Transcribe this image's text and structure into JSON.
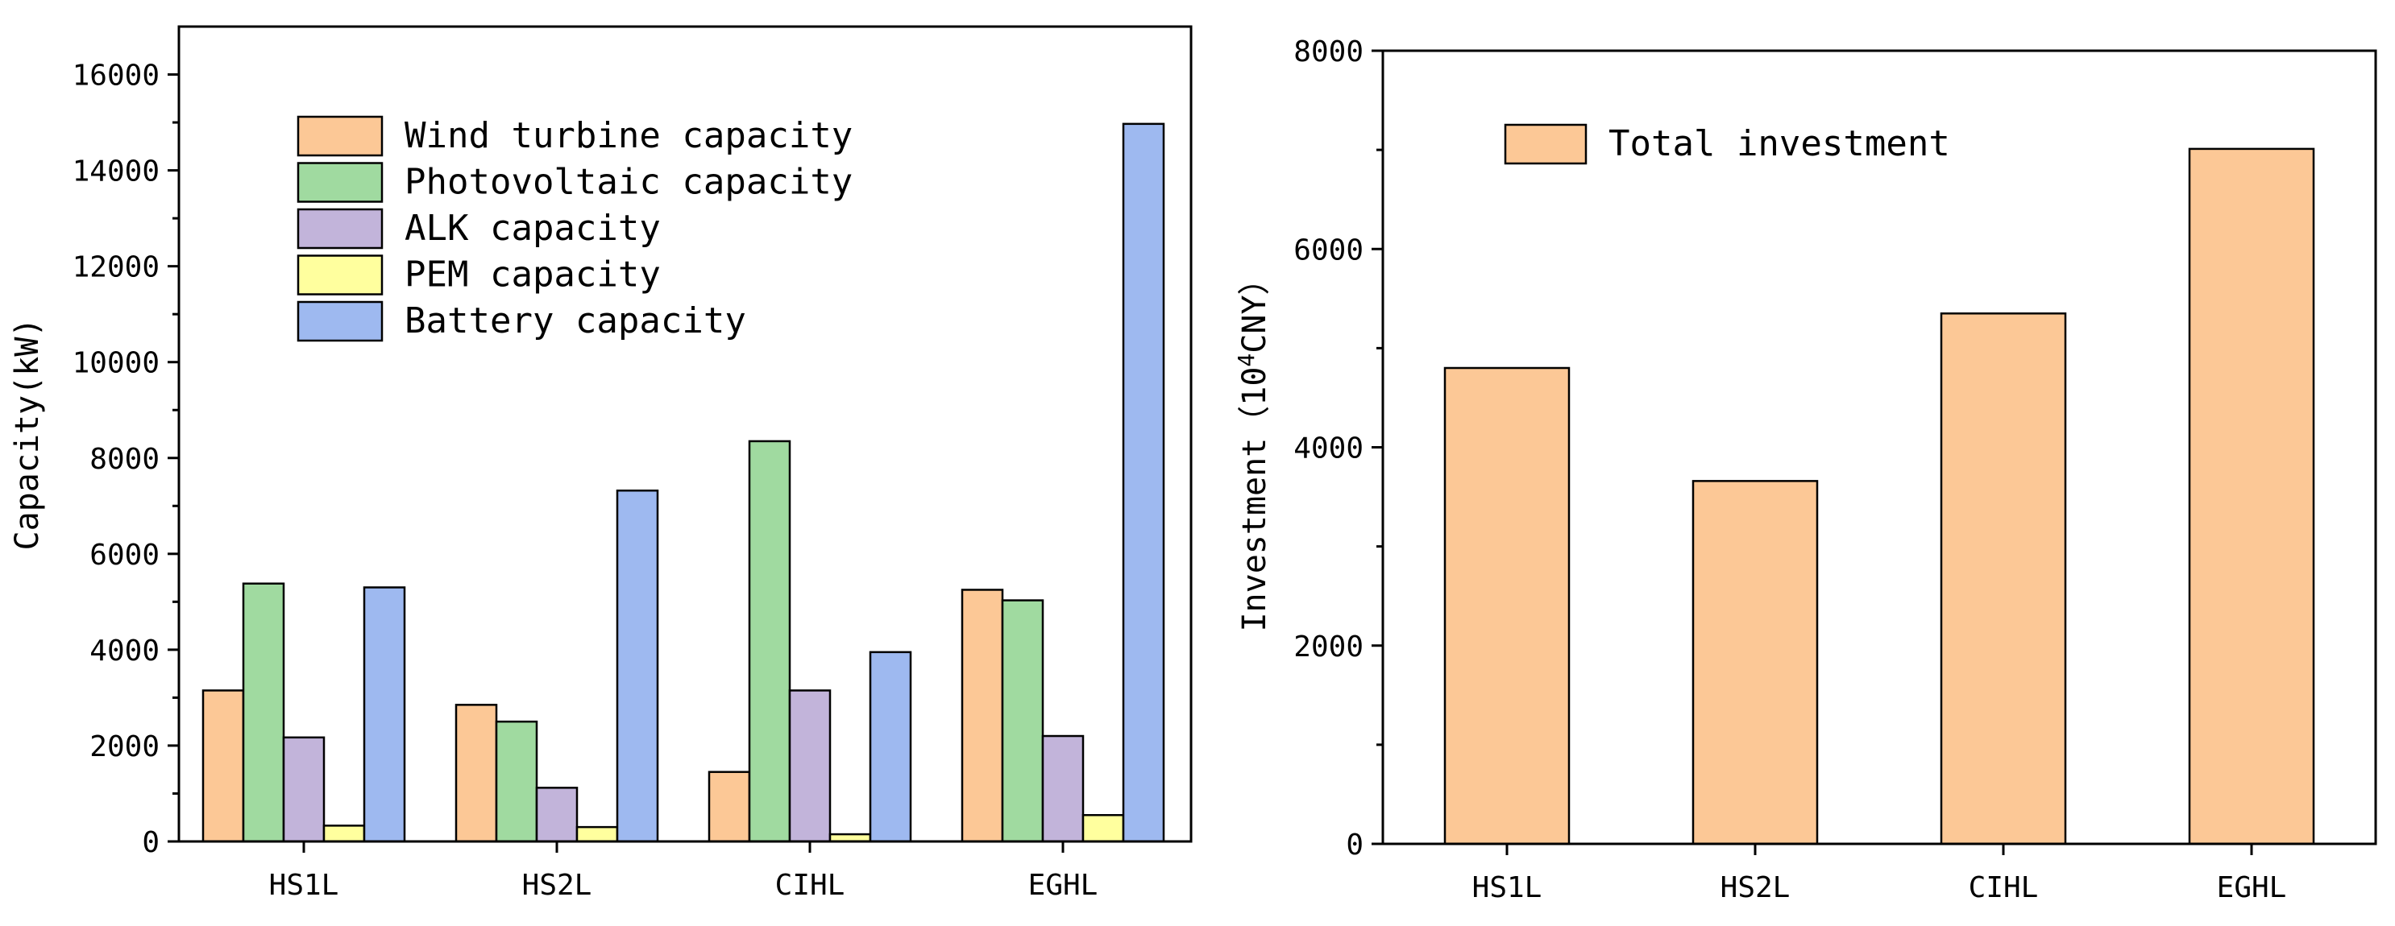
{
  "chart_data": [
    {
      "type": "bar",
      "categories": [
        "HS1L",
        "HS2L",
        "CIHL",
        "EGHL"
      ],
      "series": [
        {
          "name": "Wind turbine capacity",
          "color": "#FCC896",
          "values": [
            3150,
            2850,
            1450,
            5250
          ]
        },
        {
          "name": "Photovoltaic capacity",
          "color": "#A0DAA0",
          "values": [
            5380,
            2500,
            8350,
            5030
          ]
        },
        {
          "name": "ALK capacity",
          "color": "#C2B4DA",
          "values": [
            2170,
            1120,
            3150,
            2200
          ]
        },
        {
          "name": "PEM capacity",
          "color": "#FFFF9E",
          "values": [
            330,
            300,
            150,
            550
          ]
        },
        {
          "name": "Battery capacity",
          "color": "#9EB9F0",
          "values": [
            5300,
            7320,
            3950,
            14970
          ]
        }
      ],
      "yticks": [
        "0",
        "2000",
        "4000",
        "6000",
        "8000",
        "10000",
        "12000",
        "14000",
        "16000"
      ],
      "ylabel": "Capacity(kW)",
      "xlabel": "",
      "ylim": [
        0,
        17000
      ],
      "legend_position": "top-left"
    },
    {
      "type": "bar",
      "categories": [
        "HS1L",
        "HS2L",
        "CIHL",
        "EGHL"
      ],
      "series": [
        {
          "name": "Total investment",
          "color": "#FCC896",
          "values": [
            4800,
            3660,
            5350,
            7010
          ]
        }
      ],
      "yticks": [
        "0",
        "2000",
        "4000",
        "6000",
        "8000"
      ],
      "ylabel_main": "Investment（10",
      "ylabel_sup": "4",
      "ylabel_tail": "CNY）",
      "xlabel": "",
      "ylim": [
        0,
        8000
      ],
      "legend_position": "top-left"
    }
  ]
}
